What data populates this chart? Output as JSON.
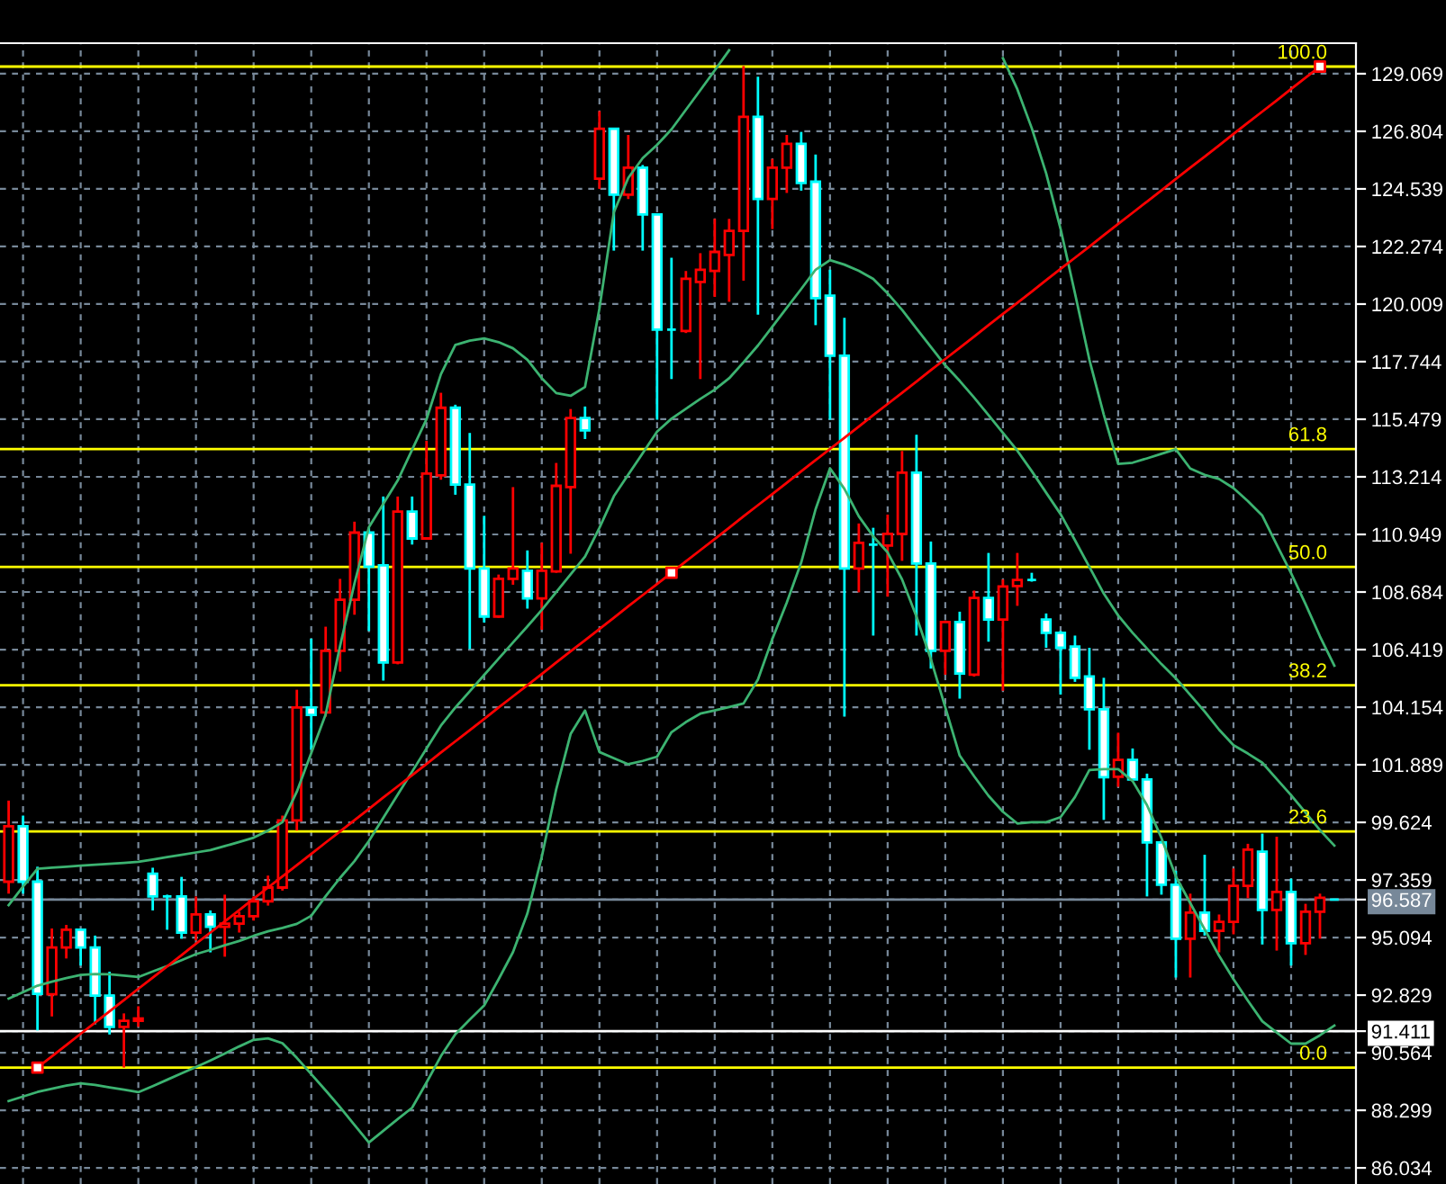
{
  "chart_data": {
    "type": "candlestick",
    "categories": [
      null,
      null,
      null,
      null,
      null,
      null,
      null,
      null,
      null,
      null,
      null,
      null,
      null,
      null,
      null,
      null,
      null,
      null,
      null,
      null,
      null,
      null,
      null,
      null,
      null,
      null,
      null,
      null,
      null,
      null,
      null,
      null,
      null,
      null,
      null,
      null,
      null,
      null,
      null,
      null,
      null,
      null,
      null,
      null,
      null,
      null,
      null,
      null,
      null,
      null,
      null,
      null,
      null,
      null,
      null,
      null,
      null,
      null,
      null,
      null,
      null,
      null,
      null,
      null,
      null,
      null,
      null,
      null,
      null,
      null,
      null,
      null,
      null,
      null,
      null,
      null,
      null,
      null,
      null,
      null,
      null,
      null,
      null,
      null,
      null,
      null,
      null,
      null,
      null,
      null,
      null,
      null,
      null
    ],
    "ohlc": [
      [
        97.29,
        100.48,
        96.82,
        99.47
      ],
      [
        99.47,
        99.89,
        96.82,
        97.29
      ],
      [
        97.29,
        97.88,
        91.44,
        92.88
      ],
      [
        92.86,
        95.45,
        91.99,
        94.7
      ],
      [
        94.7,
        95.59,
        94.27,
        95.4
      ],
      [
        95.4,
        95.45,
        93.99,
        94.7
      ],
      [
        94.7,
        95.17,
        91.68,
        92.81
      ],
      [
        92.81,
        93.75,
        91.28,
        91.58
      ],
      [
        91.58,
        92.11,
        89.98,
        91.82
      ],
      [
        91.82,
        92.39,
        91.58,
        91.91
      ],
      [
        97.6,
        97.84,
        96.16,
        96.71
      ],
      [
        96.71,
        96.78,
        95.4,
        96.71
      ],
      [
        96.71,
        97.48,
        95.05,
        95.29
      ],
      [
        95.29,
        96.71,
        94.98,
        96.0
      ],
      [
        96.0,
        96.16,
        94.51,
        95.52
      ],
      [
        95.52,
        96.78,
        94.34,
        95.64
      ],
      [
        95.64,
        96.11,
        95.29,
        95.93
      ],
      [
        95.93,
        96.71,
        95.76,
        96.52
      ],
      [
        96.52,
        97.53,
        96.35,
        97.06
      ],
      [
        97.06,
        99.89,
        96.94,
        99.7
      ],
      [
        99.7,
        104.84,
        99.3,
        104.14
      ],
      [
        104.14,
        106.85,
        102.48,
        103.85
      ],
      [
        103.95,
        107.32,
        103.78,
        106.37
      ],
      [
        106.37,
        109.2,
        105.55,
        108.38
      ],
      [
        108.38,
        111.45,
        107.79,
        111.02
      ],
      [
        111.02,
        111.21,
        107.15,
        109.68
      ],
      [
        109.73,
        112.44,
        105.2,
        105.91
      ],
      [
        105.91,
        112.44,
        105.84,
        111.85
      ],
      [
        111.85,
        112.44,
        110.55,
        110.79
      ],
      [
        110.79,
        114.63,
        110.74,
        113.34
      ],
      [
        113.27,
        116.52,
        113.1,
        115.93
      ],
      [
        115.93,
        116.05,
        112.51,
        112.91
      ],
      [
        112.91,
        114.94,
        106.44,
        109.61
      ],
      [
        109.61,
        111.68,
        107.48,
        107.72
      ],
      [
        107.72,
        109.37,
        107.67,
        109.2
      ],
      [
        109.2,
        112.81,
        108.97,
        109.61
      ],
      [
        109.52,
        110.32,
        108.03,
        108.43
      ],
      [
        108.43,
        110.62,
        107.2,
        109.52
      ],
      [
        109.49,
        113.76,
        109.44,
        112.86
      ],
      [
        112.81,
        115.88,
        110.19,
        115.53
      ],
      [
        115.53,
        115.98,
        114.7,
        115.04
      ],
      [
        124.94,
        127.6,
        124.54,
        126.9
      ],
      [
        126.9,
        126.9,
        122.11,
        124.31
      ],
      [
        124.31,
        126.66,
        124.14,
        125.37
      ],
      [
        125.37,
        125.48,
        122.11,
        123.53
      ],
      [
        123.53,
        123.53,
        115.46,
        119.0
      ],
      [
        119.0,
        121.83,
        117.06,
        119.0
      ],
      [
        118.95,
        121.31,
        118.87,
        121.0
      ],
      [
        120.88,
        122.01,
        117.06,
        121.36
      ],
      [
        121.31,
        123.36,
        120.29,
        122.06
      ],
      [
        121.94,
        123.36,
        120.1,
        122.89
      ],
      [
        122.89,
        129.37,
        120.93,
        127.37
      ],
      [
        127.37,
        128.95,
        119.59,
        124.14
      ],
      [
        124.14,
        125.72,
        122.96,
        125.37
      ],
      [
        125.37,
        126.66,
        124.38,
        126.31
      ],
      [
        126.31,
        126.78,
        124.47,
        124.77
      ],
      [
        124.82,
        125.89,
        119.18,
        120.24
      ],
      [
        120.34,
        121.36,
        115.46,
        117.98
      ],
      [
        117.98,
        119.47,
        103.78,
        109.61
      ],
      [
        109.61,
        111.38,
        108.67,
        110.62
      ],
      [
        110.55,
        111.21,
        106.97,
        110.55
      ],
      [
        110.51,
        111.73,
        108.5,
        110.97
      ],
      [
        110.97,
        114.23,
        109.91,
        113.38
      ],
      [
        113.38,
        114.87,
        106.97,
        109.8
      ],
      [
        109.8,
        110.67,
        105.67,
        106.37
      ],
      [
        106.37,
        107.56,
        105.43,
        107.5
      ],
      [
        107.5,
        107.91,
        104.49,
        105.48
      ],
      [
        105.43,
        108.74,
        105.36,
        108.45
      ],
      [
        108.45,
        110.22,
        106.73,
        107.6
      ],
      [
        107.6,
        109.18,
        104.8,
        108.9
      ],
      [
        108.92,
        110.22,
        108.14,
        109.16
      ],
      [
        109.16,
        109.44,
        109.09,
        109.16
      ],
      [
        107.6,
        107.84,
        106.49,
        107.08
      ],
      [
        107.08,
        107.15,
        104.65,
        106.49
      ],
      [
        106.54,
        106.97,
        105.15,
        105.31
      ],
      [
        105.36,
        106.49,
        102.48,
        104.07
      ],
      [
        104.07,
        105.31,
        99.72,
        101.4
      ],
      [
        101.42,
        103.15,
        101.02,
        102.08
      ],
      [
        102.08,
        102.53,
        101.31,
        101.31
      ],
      [
        101.31,
        101.54,
        96.71,
        98.83
      ],
      [
        98.83,
        98.9,
        96.78,
        97.17
      ],
      [
        97.17,
        97.72,
        93.52,
        95.05
      ],
      [
        95.05,
        96.82,
        93.52,
        96.07
      ],
      [
        96.07,
        98.35,
        95.17,
        95.36
      ],
      [
        95.36,
        96.0,
        94.51,
        95.71
      ],
      [
        95.71,
        97.81,
        95.22,
        97.13
      ],
      [
        97.13,
        98.78,
        96.64,
        98.55
      ],
      [
        98.47,
        99.18,
        94.82,
        96.18
      ],
      [
        96.18,
        99.06,
        94.58,
        96.89
      ],
      [
        96.89,
        97.41,
        93.99,
        94.87
      ],
      [
        94.87,
        96.42,
        94.41,
        96.11
      ],
      [
        96.11,
        96.82,
        95.05,
        96.66
      ],
      [
        96.59,
        96.59,
        96.59,
        96.59
      ]
    ],
    "colors": [
      "#ff0000",
      "#00ffff",
      "#00ffff",
      "#ff0000",
      "#ff0000",
      "#00ffff",
      "#00ffff",
      "#00ffff",
      "#ff0000",
      "#ff0000",
      "#00ffff",
      "#00ffff",
      "#00ffff",
      "#ff0000",
      "#00ffff",
      "#ff0000",
      "#ff0000",
      "#ff0000",
      "#ff0000",
      "#ff0000",
      "#ff0000",
      "#00ffff",
      "#ff0000",
      "#ff0000",
      "#ff0000",
      "#00ffff",
      "#00ffff",
      "#ff0000",
      "#00ffff",
      "#ff0000",
      "#ff0000",
      "#00ffff",
      "#00ffff",
      "#00ffff",
      "#ff0000",
      "#ff0000",
      "#00ffff",
      "#ff0000",
      "#ff0000",
      "#ff0000",
      "#00ffff",
      "#ff0000",
      "#00ffff",
      "#ff0000",
      "#00ffff",
      "#00ffff",
      "#00ffff",
      "#ff0000",
      "#ff0000",
      "#ff0000",
      "#ff0000",
      "#ff0000",
      "#00ffff",
      "#ff0000",
      "#ff0000",
      "#00ffff",
      "#00ffff",
      "#00ffff",
      "#00ffff",
      "#ff0000",
      "#00ffff",
      "#ff0000",
      "#ff0000",
      "#00ffff",
      "#00ffff",
      "#ff0000",
      "#00ffff",
      "#ff0000",
      "#00ffff",
      "#ff0000",
      "#ff0000",
      "#00ffff",
      "#00ffff",
      "#00ffff",
      "#00ffff",
      "#00ffff",
      "#00ffff",
      "#ff0000",
      "#00ffff",
      "#00ffff",
      "#00ffff",
      "#00ffff",
      "#ff0000",
      "#00ffff",
      "#ff0000",
      "#ff0000",
      "#ff0000",
      "#00ffff",
      "#ff0000",
      "#00ffff",
      "#ff0000",
      "#ff0000",
      "#00ffff"
    ],
    "series": [
      {
        "type": "line",
        "color": "#3cb371",
        "values": [
          96.37,
          97.1,
          97.8,
          97.84,
          97.88,
          97.92,
          97.96,
          97.99,
          98.03,
          98.07,
          98.16,
          98.26,
          98.35,
          98.44,
          98.53,
          98.69,
          98.85,
          99.02,
          99.3,
          99.63,
          100.83,
          102.35,
          103.87,
          106.56,
          109.02,
          111.23,
          112.15,
          113.07,
          114.28,
          115.48,
          117.25,
          118.4,
          118.57,
          118.66,
          118.51,
          118.27,
          117.82,
          117.09,
          116.51,
          116.4,
          116.75,
          119.84,
          123.62,
          124.97,
          125.75,
          126.27,
          126.88,
          127.65,
          128.42,
          129.2,
          129.99,
          null,
          null,
          null,
          null,
          null,
          null,
          null,
          null,
          null,
          null,
          null,
          null,
          null,
          null,
          null,
          null,
          null,
          null,
          129.68,
          128.46,
          126.93,
          125.15,
          122.97,
          120.43,
          117.82,
          115.66,
          113.72,
          113.77,
          113.94,
          114.12,
          114.3,
          113.54,
          113.29,
          113.13,
          112.77,
          112.26,
          111.69,
          110.55,
          109.42,
          108.21,
          106.94,
          105.79
        ]
      },
      {
        "type": "line",
        "color": "#3cb371",
        "values": [
          92.69,
          92.95,
          93.2,
          93.36,
          93.5,
          93.62,
          93.66,
          93.65,
          93.6,
          93.54,
          93.76,
          93.97,
          94.2,
          94.44,
          94.61,
          94.79,
          94.96,
          95.16,
          95.34,
          95.47,
          95.63,
          95.95,
          96.72,
          97.44,
          98.1,
          98.89,
          99.8,
          100.71,
          101.62,
          102.53,
          103.43,
          104.14,
          104.78,
          105.42,
          106.06,
          106.7,
          107.33,
          107.98,
          108.68,
          109.38,
          110.08,
          111.21,
          112.45,
          113.3,
          114.14,
          114.99,
          115.5,
          115.89,
          116.28,
          116.64,
          117.09,
          117.72,
          118.38,
          119.12,
          119.86,
          120.6,
          121.36,
          121.74,
          121.56,
          121.32,
          121.0,
          120.43,
          119.78,
          119.05,
          118.32,
          117.6,
          116.99,
          116.33,
          115.64,
          114.94,
          114.24,
          113.44,
          112.59,
          111.75,
          110.72,
          109.67,
          108.62,
          107.76,
          107.08,
          106.46,
          105.85,
          105.29,
          104.64,
          103.98,
          103.27,
          102.66,
          102.33,
          101.97,
          101.33,
          100.69,
          100.01,
          99.32,
          98.71
        ]
      },
      {
        "type": "line",
        "color": "#3cb371",
        "values": [
          88.66,
          88.84,
          89.02,
          89.15,
          89.27,
          89.36,
          89.3,
          89.2,
          89.11,
          89.01,
          89.25,
          89.5,
          89.75,
          90.0,
          90.26,
          90.53,
          90.81,
          91.07,
          91.13,
          90.94,
          90.36,
          89.72,
          89.08,
          88.42,
          87.72,
          87.03,
          87.49,
          87.95,
          88.4,
          89.39,
          90.43,
          91.29,
          91.87,
          92.42,
          93.45,
          94.52,
          96.04,
          98.27,
          100.92,
          103.1,
          104.02,
          102.39,
          102.15,
          101.91,
          102.04,
          102.21,
          103.17,
          103.57,
          103.9,
          104.03,
          104.16,
          104.3,
          105.24,
          106.84,
          108.27,
          109.84,
          111.94,
          113.55,
          112.74,
          111.66,
          110.87,
          110.24,
          109.18,
          107.72,
          106.04,
          104.15,
          102.25,
          101.44,
          100.67,
          100.04,
          99.58,
          99.63,
          99.63,
          99.83,
          100.62,
          101.68,
          101.72,
          101.72,
          101.25,
          100.3,
          99.01,
          97.5,
          96.45,
          95.42,
          94.38,
          93.46,
          92.61,
          91.8,
          91.36,
          90.92,
          90.92,
          91.25,
          91.63
        ]
      },
      {
        "type": "line",
        "color": "#ff0000",
        "values": [
          null,
          null,
          89.98,
          90.42,
          90.86,
          91.31,
          91.75,
          92.19,
          92.63,
          93.08,
          93.52,
          93.96,
          94.4,
          94.85,
          95.29,
          95.73,
          96.17,
          96.62,
          97.06,
          97.5,
          97.94,
          98.38,
          98.83,
          99.27,
          99.71,
          100.15,
          100.6,
          101.04,
          101.48,
          101.92,
          102.37,
          102.81,
          103.25,
          103.69,
          104.14,
          104.58,
          105.02,
          105.46,
          105.91,
          106.35,
          106.79,
          107.23,
          107.67,
          108.12,
          108.56,
          109.0,
          109.44,
          109.89,
          110.33,
          110.77,
          111.21,
          111.66,
          112.1,
          112.54,
          112.98,
          113.43,
          113.87,
          114.31,
          114.75,
          115.19,
          115.64,
          116.08,
          116.52,
          116.96,
          117.41,
          117.85,
          118.29,
          118.73,
          119.18,
          119.62,
          120.06,
          120.5,
          120.95,
          121.39,
          121.83,
          122.27,
          122.72,
          123.16,
          123.6,
          124.04,
          124.48,
          124.93,
          125.37,
          125.81,
          126.25,
          126.7,
          127.14,
          127.58,
          128.02,
          128.47,
          128.91,
          129.35,
          null
        ]
      },
      {
        "type": "scatter",
        "color": "#ff0000",
        "marker": "square",
        "values": [
          null,
          null,
          89.98,
          null,
          null,
          null,
          null,
          null,
          null,
          null,
          null,
          null,
          null,
          null,
          null,
          null,
          null,
          null,
          null,
          null,
          null,
          null,
          null,
          null,
          null,
          null,
          null,
          null,
          null,
          null,
          null,
          null,
          null,
          null,
          null,
          null,
          null,
          null,
          null,
          null,
          null,
          null,
          null,
          null,
          null,
          null,
          109.44,
          null,
          null,
          null,
          null,
          null,
          null,
          null,
          null,
          null,
          null,
          null,
          null,
          null,
          null,
          null,
          null,
          null,
          null,
          null,
          null,
          null,
          null,
          null,
          null,
          null,
          null,
          null,
          null,
          null,
          null,
          null,
          null,
          null,
          null,
          null,
          null,
          null,
          null,
          null,
          null,
          null,
          null,
          null,
          null,
          129.35,
          null
        ]
      }
    ],
    "annotations": [
      {
        "text": "100.0",
        "y": 129.35
      },
      {
        "text": "61.8",
        "y": 114.31
      },
      {
        "text": "50.0",
        "y": 109.67
      },
      {
        "text": "38.2",
        "y": 105.02
      },
      {
        "text": "23.6",
        "y": 99.27
      },
      {
        "text": "0.0",
        "y": 89.98
      }
    ],
    "ylim": [
      85.4,
      130.27
    ],
    "yticks": [
      86.034,
      88.299,
      90.564,
      {
        "value": 91.411,
        "label": "91.411"
      },
      92.829,
      95.094,
      {
        "value": 96.587,
        "label": "96.587"
      },
      97.359,
      99.624,
      101.889,
      104.154,
      106.419,
      108.684,
      110.949,
      113.214,
      115.479,
      117.744,
      120.009,
      122.274,
      124.539,
      126.804,
      129.069
    ],
    "ref_lines": [
      {
        "axis": "y",
        "value": 129.35,
        "color": "#ffff00"
      },
      {
        "axis": "y",
        "value": 114.31,
        "color": "#ffff00"
      },
      {
        "axis": "y",
        "value": 109.67,
        "color": "#ffff00"
      },
      {
        "axis": "y",
        "value": 105.02,
        "color": "#ffff00"
      },
      {
        "axis": "y",
        "value": 99.27,
        "color": "#ffff00"
      },
      {
        "axis": "y",
        "value": 89.98,
        "color": "#ffff00"
      },
      {
        "axis": "y",
        "value": 96.587,
        "color": "#778899"
      },
      {
        "axis": "y",
        "value": 91.411,
        "color": "#ffffff"
      }
    ],
    "grid": true,
    "tick_labels": "y"
  }
}
